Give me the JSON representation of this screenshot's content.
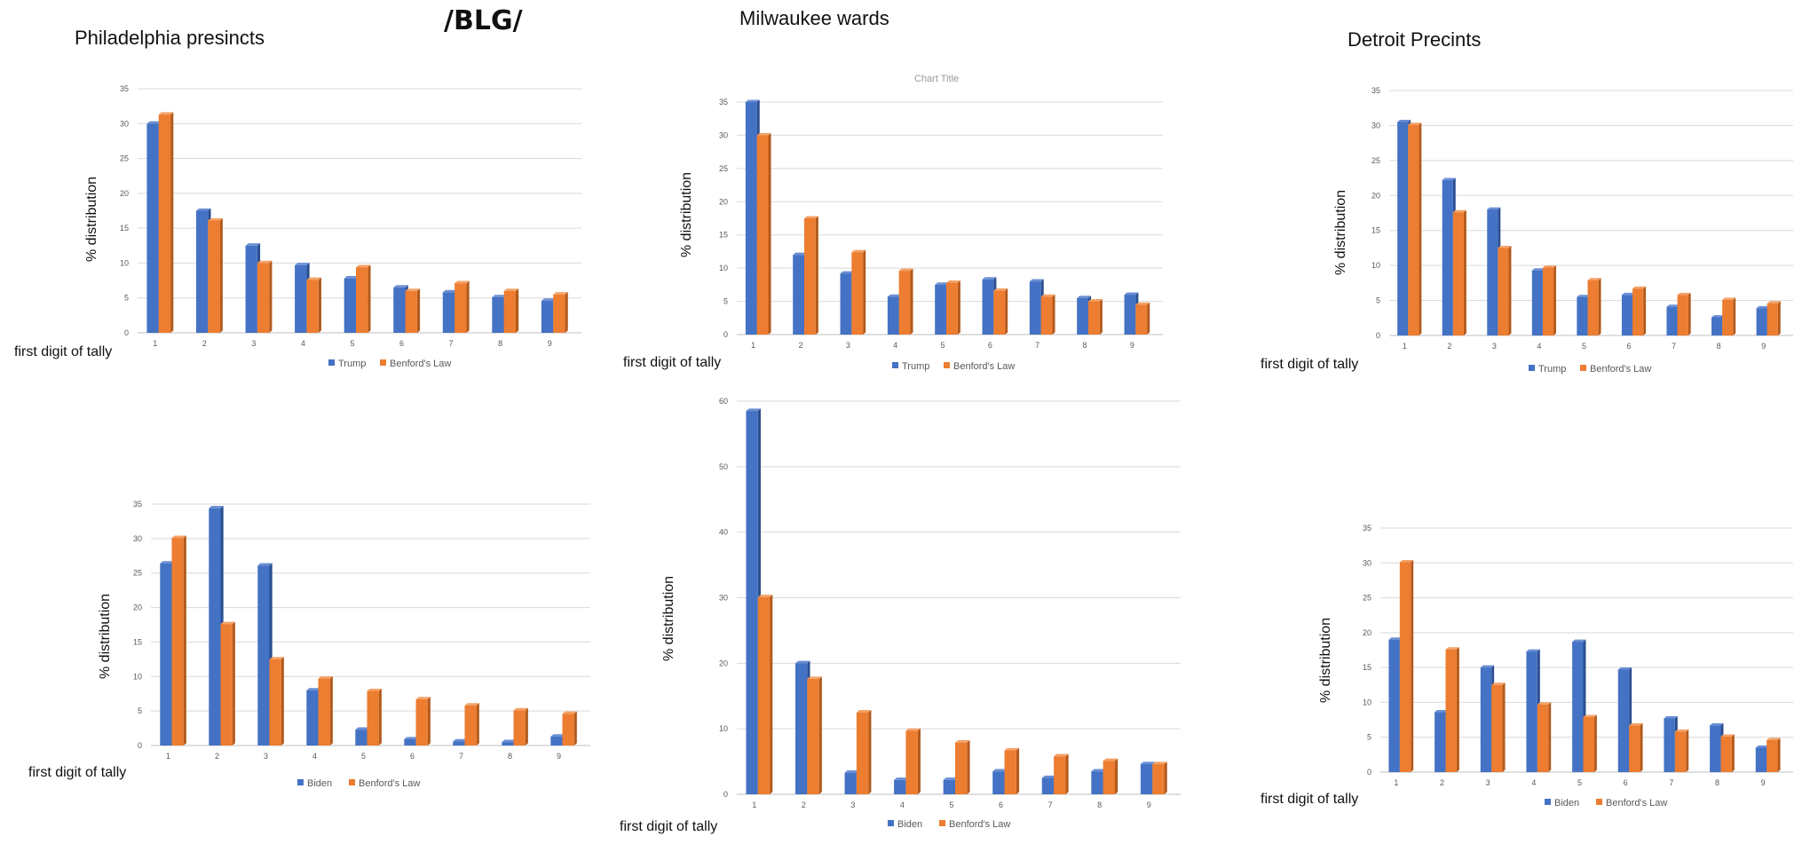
{
  "header": {
    "watermark": "/BLG/",
    "columns": [
      "Philadelphia presincts",
      "Milwaukee wards",
      "Detroit Precints"
    ]
  },
  "colors": {
    "primary": "#4472C4",
    "benford": "#ED7D31"
  },
  "chart_data": [
    {
      "id": "phl-trump",
      "type": "bar",
      "categories": [
        "1",
        "2",
        "3",
        "4",
        "5",
        "6",
        "7",
        "8",
        "9"
      ],
      "series": [
        {
          "name": "Trump",
          "values": [
            30,
            17.5,
            12.5,
            9.7,
            7.8,
            6.5,
            5.8,
            5.1,
            4.6
          ]
        },
        {
          "name": "Benford's Law",
          "values": [
            31.3,
            16.1,
            10,
            7.6,
            9.4,
            6,
            7.1,
            6,
            5.5
          ]
        }
      ],
      "xlabel": "first digit of tally",
      "ylabel": "% distribution",
      "yticks": [
        0,
        5,
        10,
        15,
        20,
        25,
        30,
        35
      ],
      "ylim": [
        0,
        35
      ],
      "title": ""
    },
    {
      "id": "mil-trump",
      "type": "bar",
      "categories": [
        "1",
        "2",
        "3",
        "4",
        "5",
        "6",
        "7",
        "8",
        "9"
      ],
      "series": [
        {
          "name": "Trump",
          "values": [
            35,
            12,
            9.2,
            5.7,
            7.5,
            8.3,
            8,
            5.5,
            6
          ]
        },
        {
          "name": "Benford's Law",
          "values": [
            30,
            17.5,
            12.4,
            9.6,
            7.8,
            6.6,
            5.7,
            5,
            4.5
          ]
        }
      ],
      "xlabel": "first digit of tally",
      "ylabel": "% distribution",
      "yticks": [
        0,
        5,
        10,
        15,
        20,
        25,
        30,
        35
      ],
      "ylim": [
        0,
        35
      ],
      "title": "Chart Title"
    },
    {
      "id": "det-trump",
      "type": "bar",
      "categories": [
        "1",
        "2",
        "3",
        "4",
        "5",
        "6",
        "7",
        "8",
        "9"
      ],
      "series": [
        {
          "name": "Trump",
          "values": [
            30.5,
            22.2,
            18,
            9.3,
            5.5,
            5.8,
            4.1,
            2.6,
            3.9
          ]
        },
        {
          "name": "Benford's Law",
          "values": [
            30.1,
            17.6,
            12.5,
            9.7,
            7.9,
            6.7,
            5.8,
            5.1,
            4.6
          ]
        }
      ],
      "xlabel": "first digit of tally",
      "ylabel": "% distribution",
      "yticks": [
        0,
        5,
        10,
        15,
        20,
        25,
        30,
        35
      ],
      "ylim": [
        0,
        35
      ],
      "title": ""
    },
    {
      "id": "phl-biden",
      "type": "bar",
      "categories": [
        "1",
        "2",
        "3",
        "4",
        "5",
        "6",
        "7",
        "8",
        "9"
      ],
      "series": [
        {
          "name": "Biden",
          "values": [
            26.4,
            34.4,
            26.1,
            8,
            2.3,
            0.9,
            0.6,
            0.5,
            1.3
          ]
        },
        {
          "name": "Benford's Law",
          "values": [
            30.1,
            17.6,
            12.5,
            9.7,
            7.9,
            6.7,
            5.8,
            5.1,
            4.6
          ]
        }
      ],
      "xlabel": "first digit of tally",
      "ylabel": "% distribution",
      "yticks": [
        0,
        5,
        10,
        15,
        20,
        25,
        30,
        35
      ],
      "ylim": [
        0,
        35
      ],
      "title": ""
    },
    {
      "id": "mil-biden",
      "type": "bar",
      "categories": [
        "1",
        "2",
        "3",
        "4",
        "5",
        "6",
        "7",
        "8",
        "9"
      ],
      "series": [
        {
          "name": "Biden",
          "values": [
            58.5,
            20,
            3.3,
            2.2,
            2.2,
            3.5,
            2.5,
            3.5,
            4.6
          ]
        },
        {
          "name": "Benford's Law",
          "values": [
            30.1,
            17.6,
            12.5,
            9.7,
            7.9,
            6.7,
            5.8,
            5.1,
            4.6
          ]
        }
      ],
      "xlabel": "first digit of tally",
      "ylabel": "% distribution",
      "yticks": [
        0,
        10,
        20,
        30,
        40,
        50,
        60
      ],
      "ylim": [
        0,
        60
      ],
      "title": ""
    },
    {
      "id": "det-biden",
      "type": "bar",
      "categories": [
        "1",
        "2",
        "3",
        "4",
        "5",
        "6",
        "7",
        "8",
        "9"
      ],
      "series": [
        {
          "name": "Biden",
          "values": [
            19,
            8.6,
            15,
            17.3,
            18.7,
            14.7,
            7.7,
            6.7,
            3.5
          ]
        },
        {
          "name": "Benford's Law",
          "values": [
            30.1,
            17.6,
            12.5,
            9.7,
            7.9,
            6.7,
            5.8,
            5.1,
            4.6
          ]
        }
      ],
      "xlabel": "first digit of tally",
      "ylabel": "% distribution",
      "yticks": [
        0,
        5,
        10,
        15,
        20,
        25,
        30,
        35
      ],
      "ylim": [
        0,
        35
      ],
      "title": ""
    }
  ]
}
